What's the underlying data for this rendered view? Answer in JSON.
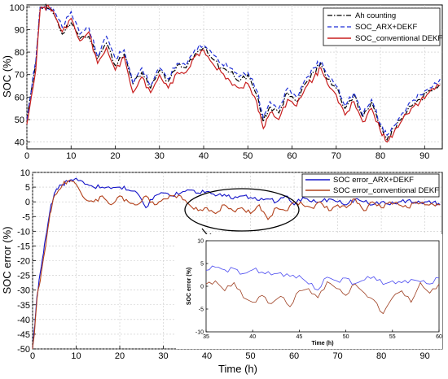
{
  "chart_data": [
    {
      "type": "line",
      "ylabel": "SOC (%)",
      "xlabel": "",
      "xlim": [
        0,
        94
      ],
      "ylim": [
        37,
        101
      ],
      "xticks": [
        0,
        10,
        20,
        30,
        40,
        50,
        60,
        70,
        80,
        90
      ],
      "yticks": [
        40,
        50,
        60,
        70,
        80,
        90,
        100
      ],
      "legend_position": "top-right",
      "series": [
        {
          "name": "Ah counting",
          "color": "#000000",
          "style": "dashdot",
          "x": [
            0,
            2,
            3,
            4,
            5,
            6,
            8,
            10,
            12,
            14,
            16,
            18,
            20,
            22,
            24,
            26,
            28,
            30,
            32,
            34,
            36,
            38,
            40,
            42,
            44,
            46,
            48,
            50,
            52,
            53.5,
            55,
            57,
            59,
            61,
            63,
            65,
            66.5,
            68,
            70,
            72,
            74,
            76,
            78,
            80,
            81.5,
            83,
            85,
            87,
            89,
            91,
            93.5
          ],
          "y": [
            50,
            75,
            100,
            100,
            100,
            97,
            88,
            93,
            86,
            87,
            77,
            84,
            74,
            79,
            66,
            71,
            64,
            72,
            67,
            74,
            73,
            79,
            82,
            77,
            73,
            71,
            67,
            70,
            61,
            49,
            56,
            53,
            62,
            58,
            66,
            71,
            75,
            68,
            64,
            55,
            61,
            51,
            58,
            47,
            41,
            46,
            51,
            56,
            59,
            63,
            66
          ]
        },
        {
          "name": "SOC_ARX+DEKF",
          "color": "#1f2fd6",
          "style": "dashed",
          "x": [
            0,
            2,
            3,
            4,
            5,
            6,
            8,
            10,
            12,
            14,
            16,
            18,
            20,
            22,
            24,
            26,
            28,
            30,
            32,
            34,
            36,
            38,
            40,
            42,
            44,
            46,
            48,
            50,
            52,
            53.5,
            55,
            57,
            59,
            61,
            63,
            65,
            66.5,
            68,
            70,
            72,
            74,
            76,
            78,
            80,
            81.5,
            83,
            85,
            87,
            89,
            91,
            93.5
          ],
          "y": [
            50,
            76,
            100,
            100,
            99,
            99,
            91,
            98,
            88,
            91,
            78,
            87,
            77,
            81,
            66,
            73,
            65,
            73,
            68,
            75,
            74,
            81,
            83,
            79,
            75,
            73,
            69,
            71,
            63,
            51,
            58,
            55,
            64,
            60,
            68,
            73,
            76,
            70,
            65,
            56,
            62,
            52,
            59,
            48,
            43,
            47,
            53,
            58,
            61,
            64,
            68
          ]
        },
        {
          "name": "SOC_conventional DEKF",
          "color": "#c81e1e",
          "style": "solid",
          "x": [
            0,
            2,
            3,
            4,
            5,
            6,
            8,
            10,
            12,
            14,
            16,
            18,
            20,
            22,
            24,
            26,
            28,
            30,
            32,
            34,
            36,
            38,
            40,
            42,
            44,
            46,
            48,
            50,
            52,
            53.5,
            55,
            57,
            59,
            61,
            63,
            65,
            66.5,
            68,
            70,
            72,
            74,
            76,
            78,
            80,
            81.5,
            83,
            85,
            87,
            89,
            91,
            93.5
          ],
          "y": [
            48,
            72,
            99,
            100,
            100,
            98,
            89,
            95,
            85,
            89,
            75,
            82,
            72,
            78,
            62,
            69,
            62,
            70,
            64,
            71,
            71,
            78,
            81,
            75,
            71,
            67,
            64,
            66,
            58,
            46,
            53,
            50,
            59,
            56,
            64,
            69,
            73,
            66,
            61,
            52,
            58,
            49,
            55,
            45,
            40,
            44,
            50,
            55,
            58,
            62,
            65
          ]
        }
      ]
    },
    {
      "type": "line",
      "ylabel": "SOC error (%)",
      "xlabel": "Time (h)",
      "xlim": [
        0,
        94
      ],
      "ylim": [
        -50,
        10
      ],
      "xticks": [
        0,
        10,
        20,
        30,
        40,
        50,
        60,
        70,
        80,
        90
      ],
      "yticks": [
        10,
        5,
        0,
        -5,
        -10,
        -15,
        -20,
        -25,
        -30,
        -35,
        -40,
        -45,
        -50
      ],
      "legend_position": "top-right",
      "annotations": [
        "ellipse highlighting 35-60 h",
        "arrow to inset"
      ],
      "series": [
        {
          "name": "SOC error_ARX+DEKF",
          "color": "#1414c8",
          "style": "solid",
          "x": [
            0,
            0.5,
            1,
            2,
            3,
            4,
            5,
            6,
            7,
            8,
            9,
            10,
            12,
            14,
            16,
            18,
            20,
            22,
            24,
            26,
            28,
            30,
            32,
            34,
            36,
            38,
            40,
            42,
            44,
            46,
            48,
            50,
            52,
            54,
            56,
            58,
            60,
            62,
            64,
            66,
            68,
            70,
            72,
            74,
            76,
            78,
            80,
            82,
            84,
            86,
            88,
            90,
            92,
            93.5
          ],
          "y": [
            -50,
            -42,
            -32,
            -22,
            -12,
            -3,
            3,
            5,
            6,
            7,
            7.5,
            8,
            6,
            5,
            5,
            4.5,
            5,
            4,
            3,
            -2,
            2,
            3,
            2,
            3,
            4,
            3,
            3.5,
            2,
            2.5,
            1,
            2,
            1.5,
            0.5,
            1,
            0,
            2,
            -1,
            1.5,
            0,
            0,
            1,
            0,
            -1,
            1,
            0,
            -1,
            0,
            -1,
            0,
            0.5,
            -0.5,
            0,
            0,
            -1
          ]
        },
        {
          "name": "SOC error_conventional DEKF",
          "color": "#b2401a",
          "style": "solid",
          "x": [
            0,
            0.5,
            1,
            2,
            3,
            4,
            5,
            6,
            7,
            8,
            9,
            10,
            12,
            14,
            16,
            18,
            20,
            22,
            24,
            26,
            28,
            30,
            32,
            34,
            36,
            38,
            40,
            42,
            44,
            46,
            48,
            50,
            52,
            54,
            56,
            58,
            60,
            62,
            64,
            66,
            68,
            70,
            72,
            74,
            76,
            78,
            80,
            82,
            84,
            86,
            88,
            90,
            92,
            93.5
          ],
          "y": [
            -50,
            -43,
            -33,
            -24,
            -15,
            -4,
            2,
            4,
            6,
            7,
            7,
            6,
            1,
            0,
            2,
            -1,
            2,
            0,
            -1,
            2,
            -1,
            1,
            2,
            2,
            -1,
            -3,
            -2,
            -4,
            -1,
            -3,
            -2,
            -4,
            -1,
            -6,
            -2,
            -3,
            0,
            -1,
            -2,
            0,
            -3,
            -1,
            -2,
            1,
            -3,
            0,
            -2,
            0,
            -1,
            -2,
            0,
            -1,
            -1,
            -1
          ]
        }
      ],
      "inset": {
        "ylabel": "SOC error (%)",
        "xlabel": "Time (h)",
        "xlim": [
          35,
          60
        ],
        "ylim": [
          -10,
          10
        ],
        "xticks": [
          35,
          40,
          45,
          50,
          55,
          60
        ],
        "yticks": [
          10,
          5,
          0,
          -5,
          -10
        ],
        "series": [
          {
            "name": "SOC error_ARX+DEKF",
            "color": "#4a4af0",
            "x": [
              35,
              36,
              37,
              38,
              39,
              40,
              41,
              42,
              43,
              44,
              45,
              46,
              47,
              48,
              49,
              50,
              51,
              52,
              53,
              54,
              55,
              56,
              57,
              58,
              59,
              60
            ],
            "y": [
              3.5,
              4.2,
              3.6,
              3.9,
              2.8,
              3.6,
              3.1,
              2.5,
              3.0,
              2.2,
              2.4,
              0.5,
              -0.8,
              2.0,
              1.2,
              1.8,
              0.6,
              1.4,
              2.1,
              0.4,
              1.2,
              0.8,
              1.5,
              1.0,
              0.5,
              1.8
            ]
          },
          {
            "name": "SOC error_conventional DEKF",
            "color": "#9c3c1e",
            "x": [
              35,
              36,
              37,
              38,
              39,
              40,
              41,
              42,
              43,
              44,
              45,
              46,
              47,
              48,
              49,
              50,
              51,
              52,
              53,
              54,
              55,
              56,
              57,
              58,
              59,
              60
            ],
            "y": [
              0.5,
              1.2,
              -1.0,
              0.8,
              -2.5,
              -3.5,
              -2.0,
              -3.8,
              -2.2,
              -4.5,
              -1.0,
              -0.5,
              -2.5,
              1.0,
              -0.5,
              -2.0,
              0.5,
              -1.5,
              -3.0,
              -6.0,
              -2.5,
              -1.0,
              -3.5,
              0.8,
              -1.5,
              0.5
            ]
          }
        ]
      }
    }
  ]
}
